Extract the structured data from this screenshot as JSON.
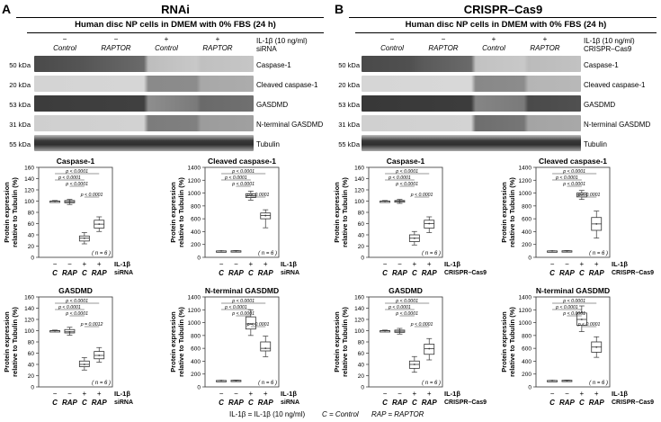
{
  "figure": {
    "footnote": [
      "IL-1β = IL-1β (10 ng/ml)",
      "C = Control",
      "RAP = RAPTOR"
    ]
  },
  "panels": [
    {
      "letter": "A",
      "title": "RNAi",
      "condition": "Human disc NP cells in DMEM with 0% FBS (24 h)",
      "treat_label": "IL-1β (10 ng/ml)",
      "intervention_label": "siRNA",
      "treat_signs": [
        "−",
        "−",
        "+",
        "+"
      ],
      "lane_groups": [
        "Control",
        "RAPTOR",
        "Control",
        "RAPTOR"
      ],
      "blots": [
        {
          "mw": "50 kDa",
          "name": "Caspase-1"
        },
        {
          "mw": "20 kDa",
          "name": "Cleaved caspase-1"
        },
        {
          "mw": "53 kDa",
          "name": "GASDMD"
        },
        {
          "mw": "31 kDa",
          "name": "N-terminal GASDMD"
        },
        {
          "mw": "55 kDa",
          "name": "Tubulin"
        }
      ]
    },
    {
      "letter": "B",
      "title": "CRISPR–Cas9",
      "condition": "Human disc NP cells in DMEM with 0% FBS (24 h)",
      "treat_label": "IL-1β (10 ng/ml)",
      "intervention_label": "CRISPR–Cas9",
      "treat_signs": [
        "−",
        "−",
        "+",
        "+"
      ],
      "lane_groups": [
        "Control",
        "RAPTOR",
        "Control",
        "RAPTOR"
      ],
      "blots": [
        {
          "mw": "50 kDa",
          "name": "Caspase-1"
        },
        {
          "mw": "20 kDa",
          "name": "Cleaved caspase-1"
        },
        {
          "mw": "53 kDa",
          "name": "GASDMD"
        },
        {
          "mw": "31 kDa",
          "name": "N-terminal GASDMD"
        },
        {
          "mw": "55 kDa",
          "name": "Tubulin"
        }
      ]
    }
  ],
  "chart_data": [
    {
      "type": "box",
      "title": "Caspase-1",
      "ylabel": "Protein expression relative to Tubulin (%)",
      "ylim": [
        0,
        160
      ],
      "yticks": [
        0,
        20,
        40,
        60,
        80,
        100,
        120,
        140,
        160
      ],
      "categories": [
        "C",
        "RAP",
        "C",
        "RAP"
      ],
      "treat_signs": [
        "−",
        "−",
        "+",
        "+"
      ],
      "row1_label": "IL-1β",
      "row2_label": "siRNA",
      "n": "( n = 6 )",
      "boxes": [
        [
          99,
          100,
          100,
          100,
          101
        ],
        [
          94,
          97,
          99,
          101,
          103
        ],
        [
          24,
          29,
          34,
          38,
          44
        ],
        [
          46,
          52,
          59,
          66,
          72
        ]
      ],
      "pvals": [
        "p < 0.0001",
        "p < 0.0001",
        "p < 0.0001",
        "p < 0.0001"
      ]
    },
    {
      "type": "box",
      "title": "Cleaved caspase-1",
      "ylabel": "Protein expression relative to Tubulin (%)",
      "ylim": [
        0,
        1400
      ],
      "yticks": [
        0,
        200,
        400,
        600,
        800,
        1000,
        1200,
        1400
      ],
      "categories": [
        "C",
        "RAP",
        "C",
        "RAP"
      ],
      "treat_signs": [
        "−",
        "−",
        "+",
        "+"
      ],
      "row1_label": "IL-1β",
      "row2_label": "siRNA",
      "n": "( n = 6 )",
      "boxes": [
        [
          98,
          100,
          100,
          100,
          102
        ],
        [
          96,
          99,
          100,
          102,
          105
        ],
        [
          890,
          930,
          960,
          990,
          1030
        ],
        [
          460,
          600,
          650,
          690,
          740
        ]
      ],
      "pvals": [
        "p < 0.0001",
        "p < 0.0001",
        "p < 0.0001",
        "p < 0.0001"
      ]
    },
    {
      "type": "box",
      "title": "GASDMD",
      "ylabel": "Protein expression relative to Tubulin (%)",
      "ylim": [
        0,
        160
      ],
      "yticks": [
        0,
        20,
        40,
        60,
        80,
        100,
        120,
        140,
        160
      ],
      "categories": [
        "C",
        "RAP",
        "C",
        "RAP"
      ],
      "treat_signs": [
        "−",
        "−",
        "+",
        "+"
      ],
      "row1_label": "IL-1β",
      "row2_label": "siRNA",
      "n": "( n = 6 )",
      "boxes": [
        [
          99,
          100,
          100,
          100,
          101
        ],
        [
          92,
          96,
          98,
          102,
          106
        ],
        [
          30,
          36,
          40,
          46,
          52
        ],
        [
          44,
          50,
          56,
          63,
          70
        ]
      ],
      "pvals": [
        "p < 0.0001",
        "p < 0.0001",
        "p < 0.0001",
        "p = 0.0012"
      ]
    },
    {
      "type": "box",
      "title": "N-terminal GASDMD",
      "ylabel": "Protein expression relative to Tubulin (%)",
      "ylim": [
        0,
        1400
      ],
      "yticks": [
        0,
        200,
        400,
        600,
        800,
        1000,
        1200,
        1400
      ],
      "categories": [
        "C",
        "RAP",
        "C",
        "RAP"
      ],
      "treat_signs": [
        "−",
        "−",
        "+",
        "+"
      ],
      "row1_label": "IL-1β",
      "row2_label": "siRNA",
      "n": "( n = 6 )",
      "boxes": [
        [
          98,
          100,
          100,
          100,
          102
        ],
        [
          95,
          98,
          100,
          103,
          106
        ],
        [
          800,
          900,
          980,
          1090,
          1200
        ],
        [
          470,
          560,
          600,
          700,
          790
        ]
      ],
      "pvals": [
        "p < 0.0001",
        "p < 0.0001",
        "p < 0.0001",
        "p < 0.0001"
      ]
    },
    {
      "type": "box",
      "title": "Caspase-1",
      "ylabel": "Protein expression relative to Tubulin (%)",
      "ylim": [
        0,
        160
      ],
      "yticks": [
        0,
        20,
        40,
        60,
        80,
        100,
        120,
        140,
        160
      ],
      "categories": [
        "C",
        "RAP",
        "C",
        "RAP"
      ],
      "treat_signs": [
        "−",
        "−",
        "+",
        "+"
      ],
      "row1_label": "IL-1β",
      "row2_label": "CRISPR–Cas9",
      "n": "( n = 6 )",
      "boxes": [
        [
          99,
          100,
          100,
          100,
          101
        ],
        [
          96,
          98,
          100,
          101,
          103
        ],
        [
          22,
          28,
          34,
          40,
          46
        ],
        [
          44,
          52,
          60,
          66,
          72
        ]
      ],
      "pvals": [
        "p < 0.0001",
        "p < 0.0001",
        "p < 0.0001",
        "p < 0.0001"
      ]
    },
    {
      "type": "box",
      "title": "Cleaved caspase-1",
      "ylabel": "Protein expression relative to Tubulin (%)",
      "ylim": [
        0,
        1400
      ],
      "yticks": [
        0,
        200,
        400,
        600,
        800,
        1000,
        1200,
        1400
      ],
      "categories": [
        "C",
        "RAP",
        "C",
        "RAP"
      ],
      "treat_signs": [
        "−",
        "−",
        "+",
        "+"
      ],
      "row1_label": "IL-1β",
      "row2_label": "CRISPR–Cas9",
      "n": "( n = 6 )",
      "boxes": [
        [
          98,
          100,
          100,
          100,
          102
        ],
        [
          96,
          99,
          100,
          102,
          105
        ],
        [
          900,
          940,
          970,
          1000,
          1040
        ],
        [
          300,
          420,
          520,
          620,
          720
        ]
      ],
      "pvals": [
        "p < 0.0001",
        "p < 0.0001",
        "p < 0.0001",
        "p < 0.0001"
      ]
    },
    {
      "type": "box",
      "title": "GASDMD",
      "ylabel": "Protein expression relative to Tubulin (%)",
      "ylim": [
        0,
        160
      ],
      "yticks": [
        0,
        20,
        40,
        60,
        80,
        100,
        120,
        140,
        160
      ],
      "categories": [
        "C",
        "RAP",
        "C",
        "RAP"
      ],
      "treat_signs": [
        "−",
        "−",
        "+",
        "+"
      ],
      "row1_label": "IL-1β",
      "row2_label": "CRISPR–Cas9",
      "n": "( n = 6 )",
      "boxes": [
        [
          99,
          100,
          100,
          100,
          101
        ],
        [
          94,
          97,
          99,
          101,
          104
        ],
        [
          26,
          33,
          40,
          46,
          54
        ],
        [
          48,
          58,
          68,
          76,
          86
        ]
      ],
      "pvals": [
        "p < 0.0001",
        "p < 0.0001",
        "p < 0.0001",
        "p < 0.0001"
      ]
    },
    {
      "type": "box",
      "title": "N-terminal GASDMD",
      "ylabel": "Protein expression relative to Tubulin (%)",
      "ylim": [
        0,
        1400
      ],
      "yticks": [
        0,
        200,
        400,
        600,
        800,
        1000,
        1200,
        1400
      ],
      "categories": [
        "C",
        "RAP",
        "C",
        "RAP"
      ],
      "treat_signs": [
        "−",
        "−",
        "+",
        "+"
      ],
      "row1_label": "IL-1β",
      "row2_label": "CRISPR–Cas9",
      "n": "( n = 6 )",
      "boxes": [
        [
          98,
          100,
          100,
          100,
          102
        ],
        [
          95,
          98,
          100,
          103,
          106
        ],
        [
          860,
          960,
          1050,
          1150,
          1260
        ],
        [
          460,
          540,
          620,
          700,
          780
        ]
      ],
      "pvals": [
        "p < 0.0001",
        "p < 0.0001",
        "p < 0.0001",
        "p < 0.0001"
      ]
    }
  ]
}
